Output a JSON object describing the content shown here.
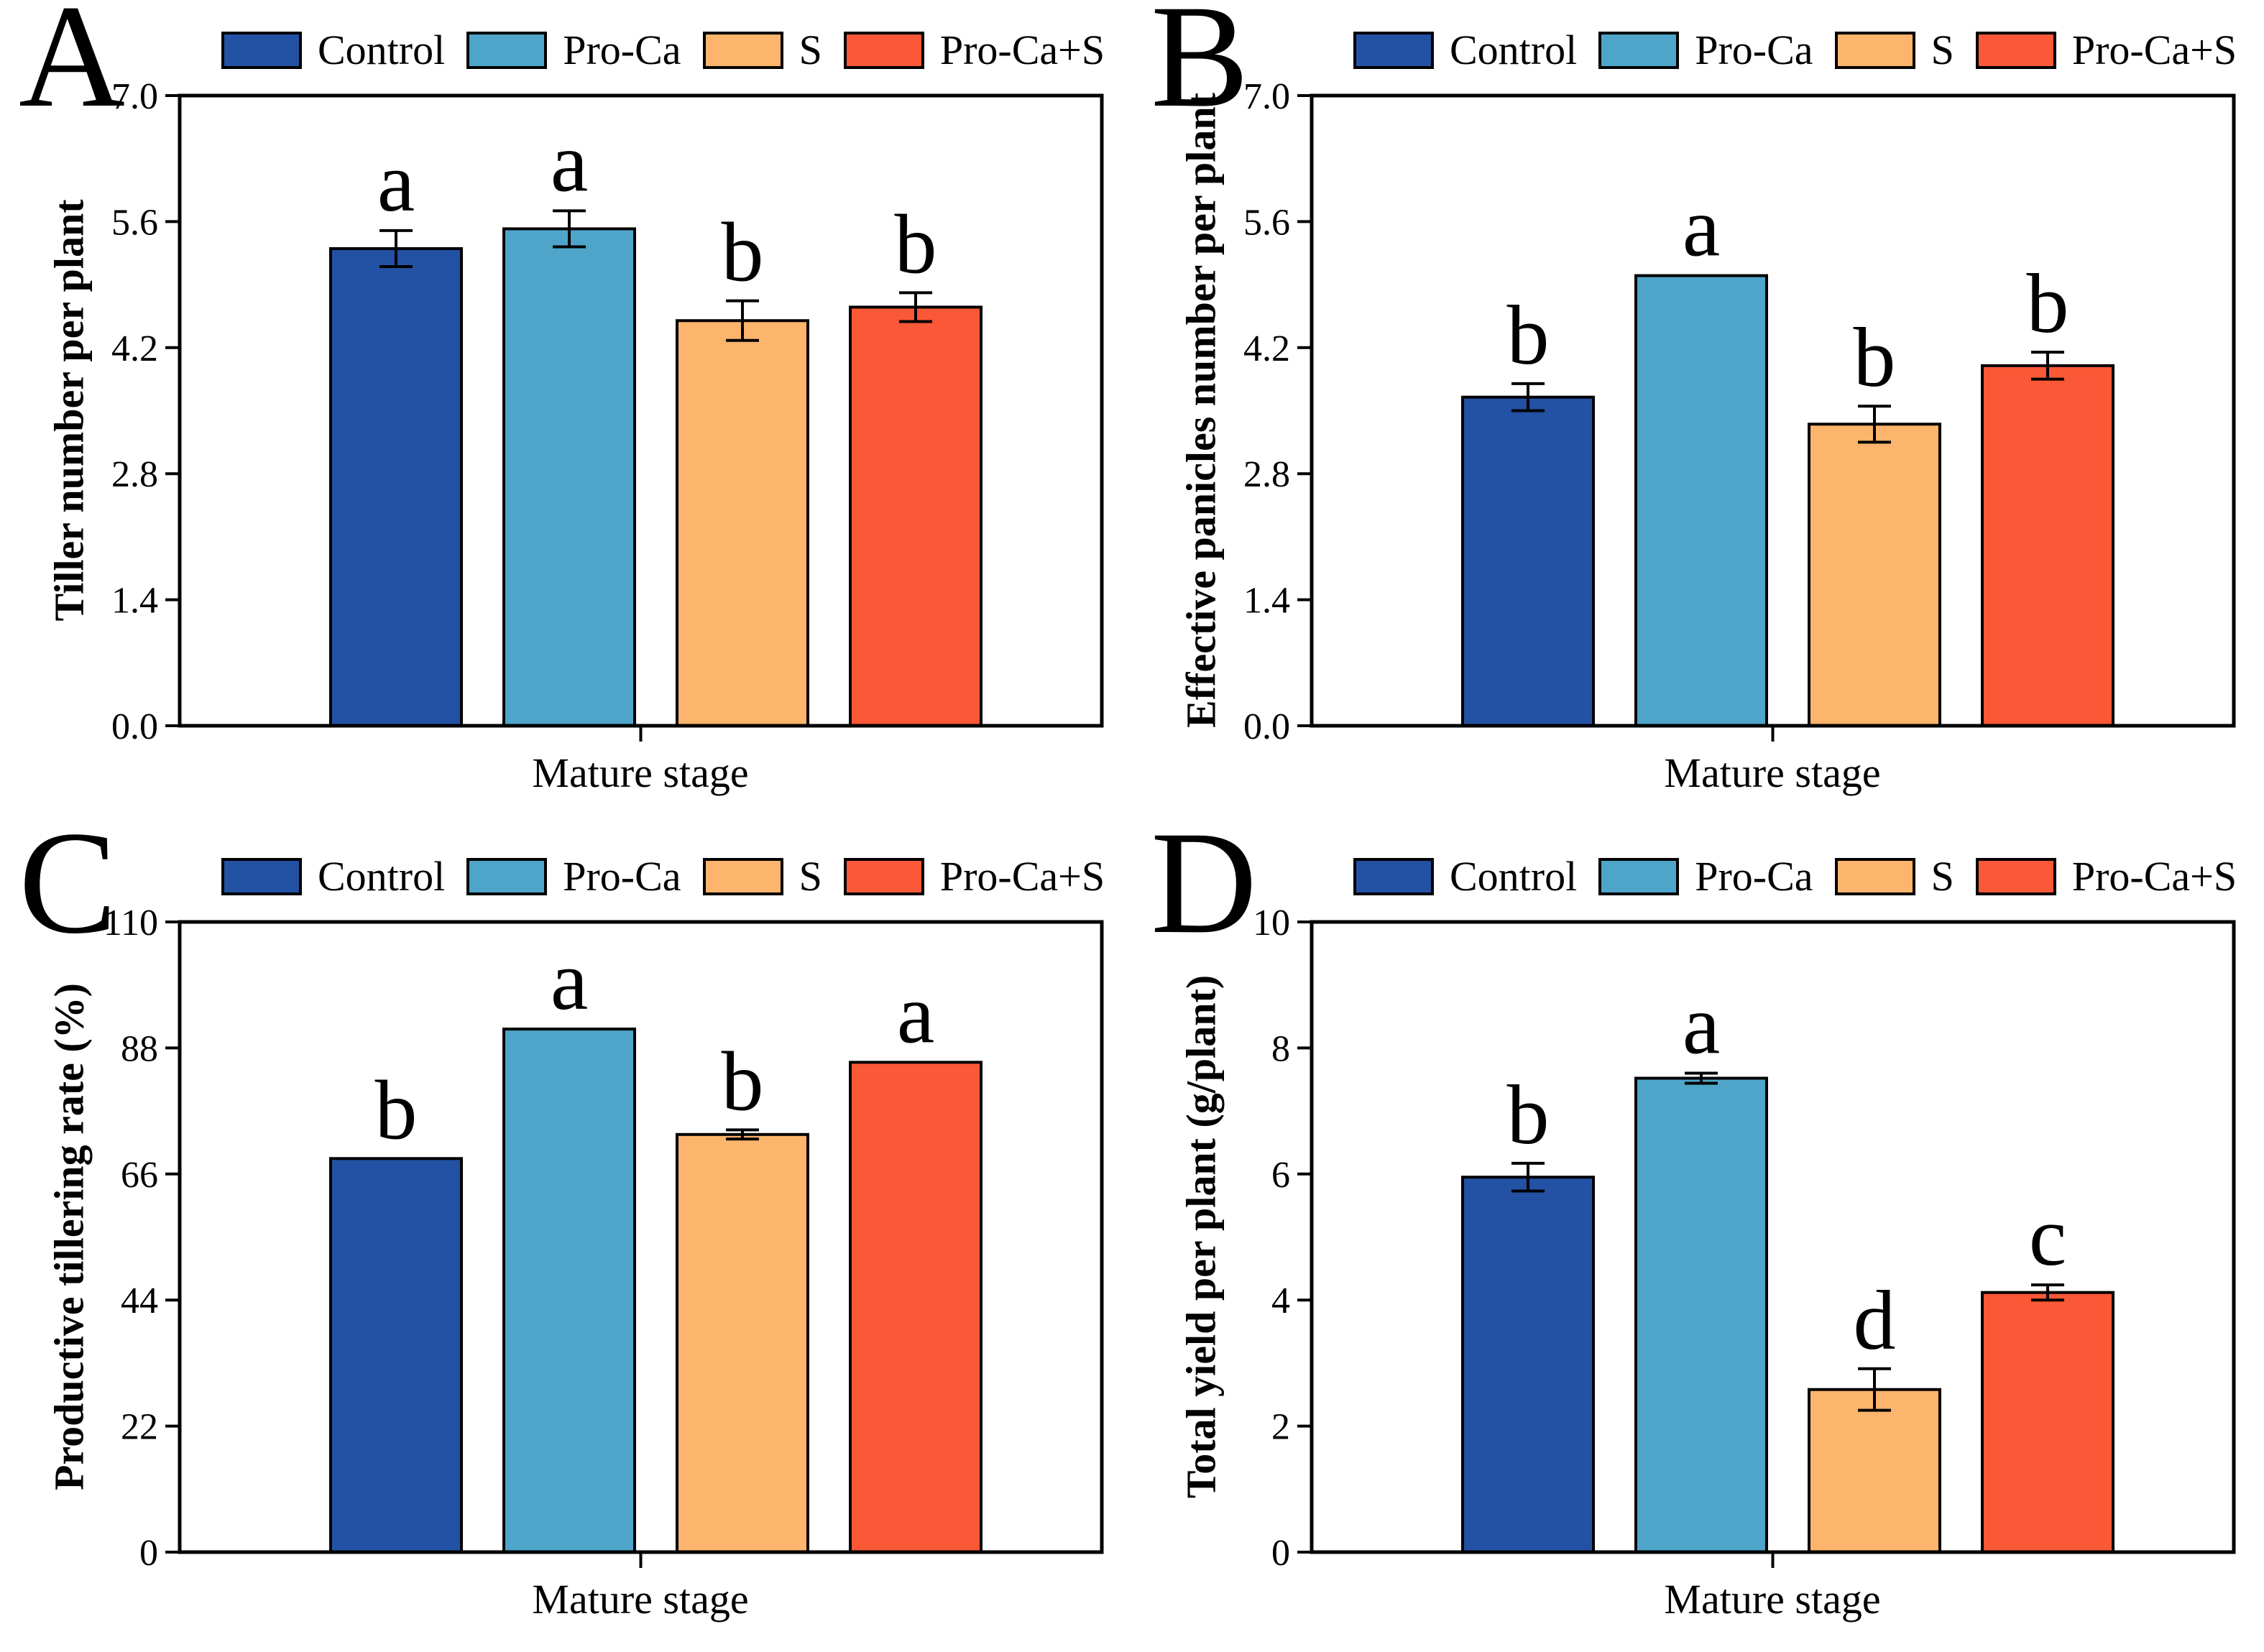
{
  "legend": {
    "items": [
      {
        "label": "Control",
        "color": "#2351A3"
      },
      {
        "label": "Pro-Ca",
        "color": "#4EA5C9"
      },
      {
        "label": "S",
        "color": "#FDB46C"
      },
      {
        "label": "Pro-Ca+S",
        "color": "#FA5837"
      }
    ]
  },
  "chart_data": [
    {
      "panel": "A",
      "type": "bar",
      "title": "",
      "ylabel": "Tiller number per plant",
      "xlabel": "Mature stage",
      "categories": [
        "Control",
        "Pro-Ca",
        "S",
        "Pro-Ca+S"
      ],
      "values": [
        5.3,
        5.52,
        4.5,
        4.65
      ],
      "errors": [
        0.2,
        0.2,
        0.22,
        0.16
      ],
      "sig_letters": [
        "a",
        "a",
        "b",
        "b"
      ],
      "ylim": [
        0,
        7
      ],
      "yticks": [
        0,
        1.4,
        2.8,
        4.2,
        5.6,
        7
      ],
      "ytick_labels": [
        "0.0",
        "1.4",
        "2.8",
        "4.2",
        "5.6",
        "7.0"
      ],
      "grid": false,
      "legend_position": "top"
    },
    {
      "panel": "B",
      "type": "bar",
      "title": "",
      "ylabel": "Effective panicles number per plant",
      "xlabel": "Mature stage",
      "categories": [
        "Control",
        "Pro-Ca",
        "S",
        "Pro-Ca+S"
      ],
      "values": [
        3.65,
        5.0,
        3.35,
        4.0
      ],
      "errors": [
        0.15,
        0,
        0.2,
        0.15
      ],
      "sig_letters": [
        "b",
        "a",
        "b",
        "b"
      ],
      "ylim": [
        0,
        7
      ],
      "yticks": [
        0,
        1.4,
        2.8,
        4.2,
        5.6,
        7
      ],
      "ytick_labels": [
        "0.0",
        "1.4",
        "2.8",
        "4.2",
        "5.6",
        "7.0"
      ],
      "grid": false,
      "legend_position": "top"
    },
    {
      "panel": "C",
      "type": "bar",
      "title": "",
      "ylabel": "Productive tillering rate (%)",
      "xlabel": "Mature stage",
      "categories": [
        "Control",
        "Pro-Ca",
        "S",
        "Pro-Ca+S"
      ],
      "values": [
        68.7,
        91.3,
        72.9,
        85.5
      ],
      "errors": [
        0,
        0,
        0.8,
        0
      ],
      "sig_letters": [
        "b",
        "a",
        "b",
        "a"
      ],
      "ylim": [
        0,
        110
      ],
      "yticks": [
        0,
        22,
        44,
        66,
        88,
        110
      ],
      "ytick_labels": [
        "0",
        "22",
        "44",
        "66",
        "88",
        "110"
      ],
      "grid": false,
      "legend_position": "top"
    },
    {
      "panel": "D",
      "type": "bar",
      "title": "",
      "ylabel": "Total yield per plant (g/plant)",
      "xlabel": "Mature stage",
      "categories": [
        "Control",
        "Pro-Ca",
        "S",
        "Pro-Ca+S"
      ],
      "values": [
        5.95,
        7.52,
        2.58,
        4.12
      ],
      "errors": [
        0.22,
        0.08,
        0.33,
        0.12
      ],
      "sig_letters": [
        "b",
        "a",
        "d",
        "c"
      ],
      "ylim": [
        0,
        10
      ],
      "yticks": [
        0,
        2,
        4,
        6,
        8,
        10
      ],
      "ytick_labels": [
        "0",
        "2",
        "4",
        "6",
        "8",
        "10"
      ],
      "grid": false,
      "legend_position": "top"
    }
  ]
}
